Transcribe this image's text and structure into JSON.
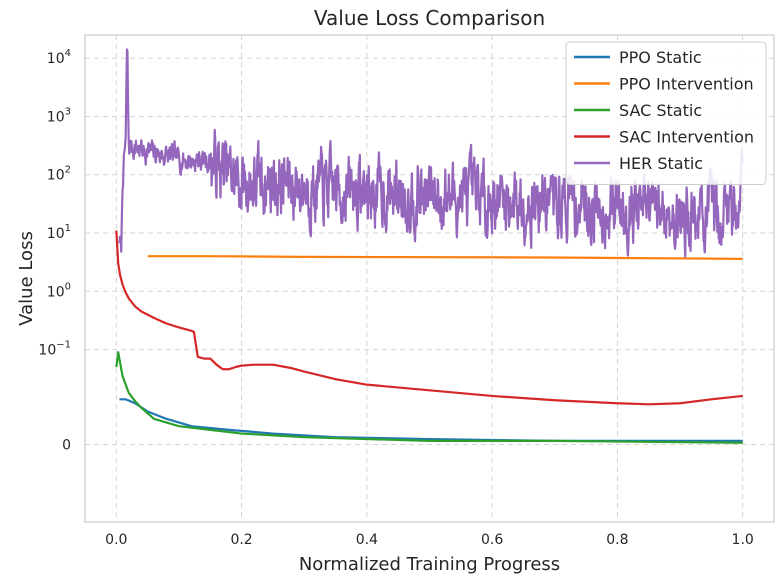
{
  "chart_data": {
    "type": "line",
    "title": "Value Loss Comparison",
    "xlabel": "Normalized Training Progress",
    "ylabel": "Value Loss",
    "yscale": "symlog",
    "xlim": [
      -0.05,
      1.05
    ],
    "ylim": [
      -0.05,
      25000
    ],
    "grid": true,
    "legend_position": "top-right",
    "xticks": [
      {
        "value": 0.0,
        "label": "0.0"
      },
      {
        "value": 0.2,
        "label": "0.2"
      },
      {
        "value": 0.4,
        "label": "0.4"
      },
      {
        "value": 0.6,
        "label": "0.6"
      },
      {
        "value": 0.8,
        "label": "0.8"
      },
      {
        "value": 1.0,
        "label": "1.0"
      }
    ],
    "yticks": [
      {
        "value": 0,
        "base": "0",
        "exp": ""
      },
      {
        "value": 0.1,
        "base": "10",
        "exp": "−1"
      },
      {
        "value": 1,
        "base": "10",
        "exp": "0"
      },
      {
        "value": 10,
        "base": "10",
        "exp": "1"
      },
      {
        "value": 100,
        "base": "10",
        "exp": "2"
      },
      {
        "value": 1000,
        "base": "10",
        "exp": "3"
      },
      {
        "value": 10000,
        "base": "10",
        "exp": "4"
      }
    ],
    "series": [
      {
        "name": "PPO Static",
        "color": "#1f77b4",
        "x": [
          0.005,
          0.015,
          0.03,
          0.05,
          0.08,
          0.12,
          0.18,
          0.25,
          0.35,
          0.5,
          0.7,
          1.0
        ],
        "y": [
          0.014,
          0.014,
          0.012,
          0.009,
          0.007,
          0.005,
          0.004,
          0.003,
          0.002,
          0.0015,
          0.001,
          0.001
        ]
      },
      {
        "name": "PPO Intervention",
        "color": "#ff7f0e",
        "x": [
          0.05,
          0.15,
          0.3,
          0.5,
          0.7,
          0.85,
          1.0
        ],
        "y": [
          4.0,
          4.0,
          3.9,
          3.85,
          3.8,
          3.7,
          3.6
        ]
      },
      {
        "name": "SAC Static",
        "color": "#2ca02c",
        "x": [
          0.0,
          0.003,
          0.006,
          0.01,
          0.015,
          0.02,
          0.03,
          0.04,
          0.06,
          0.1,
          0.15,
          0.2,
          0.3,
          0.5,
          0.7,
          1.0
        ],
        "y": [
          0.05,
          0.09,
          0.06,
          0.035,
          0.025,
          0.018,
          0.013,
          0.01,
          0.007,
          0.005,
          0.004,
          0.003,
          0.002,
          0.001,
          0.001,
          0.0005
        ]
      },
      {
        "name": "SAC Intervention",
        "color": "#d62728",
        "x": [
          0.0,
          0.003,
          0.006,
          0.01,
          0.015,
          0.02,
          0.03,
          0.04,
          0.06,
          0.08,
          0.1,
          0.12,
          0.124,
          0.13,
          0.14,
          0.15,
          0.16,
          0.17,
          0.18,
          0.19,
          0.2,
          0.22,
          0.25,
          0.28,
          0.3,
          0.35,
          0.4,
          0.5,
          0.6,
          0.7,
          0.8,
          0.85,
          0.9,
          0.95,
          1.0
        ],
        "y": [
          11,
          3.0,
          1.9,
          1.3,
          0.95,
          0.75,
          0.55,
          0.45,
          0.35,
          0.28,
          0.24,
          0.21,
          0.2,
          0.075,
          0.07,
          0.07,
          0.055,
          0.046,
          0.046,
          0.05,
          0.053,
          0.055,
          0.055,
          0.048,
          0.042,
          0.031,
          0.025,
          0.02,
          0.016,
          0.0135,
          0.012,
          0.0115,
          0.012,
          0.014,
          0.016
        ]
      },
      {
        "name": "HER Static",
        "color": "#9467bd",
        "noisy": true,
        "noise_amp": 0.55,
        "noise_seed": 7,
        "x": [
          0.005,
          0.008,
          0.01,
          0.012,
          0.015,
          0.017,
          0.02,
          0.03,
          0.05,
          0.08,
          0.1,
          0.12,
          0.14,
          0.15,
          0.17,
          0.2,
          0.25,
          0.3,
          0.35,
          0.4,
          0.5,
          0.6,
          0.7,
          0.8,
          0.85,
          0.9,
          0.95,
          0.99,
          1.0
        ],
        "y": [
          8,
          5,
          80,
          150,
          400,
          12000,
          300,
          300,
          250,
          210,
          190,
          175,
          180,
          170,
          120,
          70,
          75,
          60,
          55,
          50,
          45,
          40,
          35,
          28,
          25,
          20,
          20,
          30,
          140
        ],
        "spike_x": 0.0175,
        "spike_y": 12000
      }
    ]
  }
}
